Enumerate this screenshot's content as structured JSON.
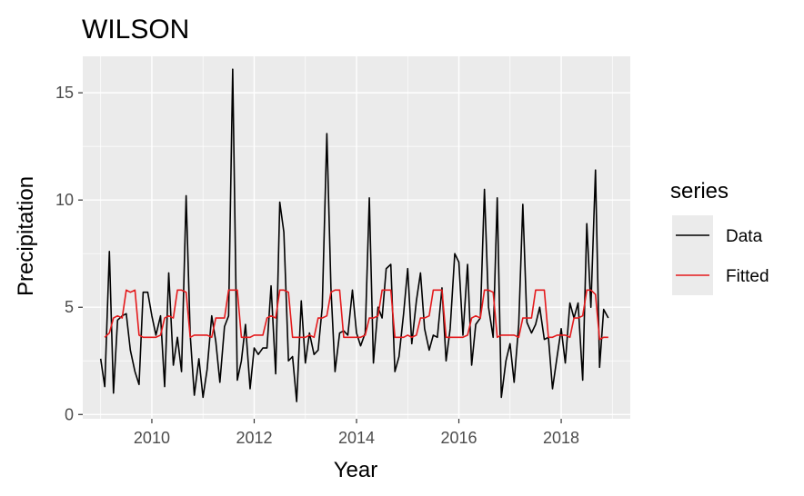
{
  "chart_data": {
    "type": "line",
    "title": "WILSON",
    "xlabel": "Year",
    "ylabel": "Precipitation",
    "xlim": [
      2008.65,
      2019.35
    ],
    "ylim": [
      -0.2,
      16.7
    ],
    "x_ticks": [
      2010,
      2012,
      2014,
      2016,
      2018
    ],
    "x_tick_labels": [
      "2010",
      "2012",
      "2014",
      "2016",
      "2018"
    ],
    "y_ticks": [
      0,
      5,
      10,
      15
    ],
    "y_tick_labels": [
      "0",
      "5",
      "10",
      "15"
    ],
    "grid": true,
    "legend": {
      "title": "series",
      "position": "right"
    },
    "series": [
      {
        "name": "Data",
        "color": "#000000",
        "values": [
          [
            2009.0,
            2.6
          ],
          [
            2009.08,
            1.3
          ],
          [
            2009.17,
            7.6
          ],
          [
            2009.25,
            1.0
          ],
          [
            2009.33,
            4.4
          ],
          [
            2009.42,
            4.6
          ],
          [
            2009.5,
            4.7
          ],
          [
            2009.58,
            3.0
          ],
          [
            2009.67,
            2.0
          ],
          [
            2009.75,
            1.4
          ],
          [
            2009.83,
            5.7
          ],
          [
            2009.92,
            5.7
          ],
          [
            2010.0,
            4.6
          ],
          [
            2010.08,
            3.7
          ],
          [
            2010.17,
            4.6
          ],
          [
            2010.25,
            1.3
          ],
          [
            2010.33,
            6.6
          ],
          [
            2010.42,
            2.3
          ],
          [
            2010.5,
            3.6
          ],
          [
            2010.58,
            2.0
          ],
          [
            2010.67,
            10.2
          ],
          [
            2010.75,
            3.7
          ],
          [
            2010.83,
            0.9
          ],
          [
            2010.92,
            2.6
          ],
          [
            2011.0,
            0.8
          ],
          [
            2011.08,
            2.1
          ],
          [
            2011.17,
            4.6
          ],
          [
            2011.25,
            3.4
          ],
          [
            2011.33,
            1.5
          ],
          [
            2011.42,
            4.1
          ],
          [
            2011.5,
            4.6
          ],
          [
            2011.58,
            16.1
          ],
          [
            2011.67,
            1.6
          ],
          [
            2011.75,
            2.5
          ],
          [
            2011.83,
            4.2
          ],
          [
            2011.92,
            1.2
          ],
          [
            2012.0,
            3.1
          ],
          [
            2012.08,
            2.8
          ],
          [
            2012.17,
            3.1
          ],
          [
            2012.25,
            3.1
          ],
          [
            2012.33,
            6.0
          ],
          [
            2012.42,
            1.9
          ],
          [
            2012.5,
            9.9
          ],
          [
            2012.58,
            8.5
          ],
          [
            2012.67,
            2.5
          ],
          [
            2012.75,
            2.7
          ],
          [
            2012.83,
            0.6
          ],
          [
            2012.92,
            5.3
          ],
          [
            2013.0,
            2.4
          ],
          [
            2013.08,
            3.8
          ],
          [
            2013.17,
            2.8
          ],
          [
            2013.25,
            3.0
          ],
          [
            2013.33,
            5.0
          ],
          [
            2013.42,
            13.1
          ],
          [
            2013.5,
            5.9
          ],
          [
            2013.58,
            2.0
          ],
          [
            2013.67,
            3.8
          ],
          [
            2013.75,
            3.9
          ],
          [
            2013.83,
            3.7
          ],
          [
            2013.92,
            5.8
          ],
          [
            2014.0,
            3.8
          ],
          [
            2014.08,
            3.2
          ],
          [
            2014.17,
            3.8
          ],
          [
            2014.25,
            10.1
          ],
          [
            2014.33,
            2.4
          ],
          [
            2014.42,
            5.0
          ],
          [
            2014.5,
            4.5
          ],
          [
            2014.58,
            6.8
          ],
          [
            2014.67,
            7.0
          ],
          [
            2014.75,
            2.0
          ],
          [
            2014.83,
            2.7
          ],
          [
            2014.92,
            4.7
          ],
          [
            2015.0,
            6.8
          ],
          [
            2015.08,
            3.3
          ],
          [
            2015.17,
            5.3
          ],
          [
            2015.25,
            6.6
          ],
          [
            2015.33,
            4.0
          ],
          [
            2015.42,
            3.0
          ],
          [
            2015.5,
            3.7
          ],
          [
            2015.58,
            3.6
          ],
          [
            2015.67,
            5.9
          ],
          [
            2015.75,
            2.5
          ],
          [
            2015.83,
            4.0
          ],
          [
            2015.92,
            7.5
          ],
          [
            2016.0,
            7.1
          ],
          [
            2016.08,
            3.7
          ],
          [
            2016.17,
            7.0
          ],
          [
            2016.25,
            2.3
          ],
          [
            2016.33,
            4.2
          ],
          [
            2016.42,
            4.5
          ],
          [
            2016.5,
            10.5
          ],
          [
            2016.58,
            5.0
          ],
          [
            2016.67,
            3.6
          ],
          [
            2016.75,
            10.1
          ],
          [
            2016.83,
            0.8
          ],
          [
            2016.92,
            2.5
          ],
          [
            2017.0,
            3.3
          ],
          [
            2017.08,
            1.5
          ],
          [
            2017.17,
            4.2
          ],
          [
            2017.25,
            9.8
          ],
          [
            2017.33,
            4.3
          ],
          [
            2017.42,
            3.8
          ],
          [
            2017.5,
            4.2
          ],
          [
            2017.58,
            5.0
          ],
          [
            2017.67,
            3.5
          ],
          [
            2017.75,
            3.6
          ],
          [
            2017.83,
            1.2
          ],
          [
            2017.92,
            2.7
          ],
          [
            2018.0,
            4.0
          ],
          [
            2018.08,
            2.4
          ],
          [
            2018.17,
            5.2
          ],
          [
            2018.25,
            4.5
          ],
          [
            2018.33,
            5.2
          ],
          [
            2018.42,
            1.6
          ],
          [
            2018.5,
            8.9
          ],
          [
            2018.58,
            5.0
          ],
          [
            2018.67,
            11.4
          ],
          [
            2018.75,
            2.2
          ],
          [
            2018.83,
            4.9
          ],
          [
            2018.92,
            4.5
          ]
        ]
      },
      {
        "name": "Fitted",
        "color": "#e41a1c",
        "values": [
          [
            2009.08,
            3.6
          ],
          [
            2009.17,
            3.8
          ],
          [
            2009.25,
            4.5
          ],
          [
            2009.33,
            4.6
          ],
          [
            2009.42,
            4.5
          ],
          [
            2009.5,
            5.8
          ],
          [
            2009.58,
            5.7
          ],
          [
            2009.67,
            5.8
          ],
          [
            2009.75,
            3.7
          ],
          [
            2009.83,
            3.6
          ],
          [
            2009.92,
            3.6
          ],
          [
            2010.0,
            3.6
          ],
          [
            2010.08,
            3.6
          ],
          [
            2010.17,
            3.7
          ],
          [
            2010.25,
            4.5
          ],
          [
            2010.33,
            4.6
          ],
          [
            2010.42,
            4.5
          ],
          [
            2010.5,
            5.8
          ],
          [
            2010.58,
            5.8
          ],
          [
            2010.67,
            5.7
          ],
          [
            2010.75,
            3.6
          ],
          [
            2010.83,
            3.7
          ],
          [
            2010.92,
            3.7
          ],
          [
            2011.0,
            3.7
          ],
          [
            2011.08,
            3.7
          ],
          [
            2011.17,
            3.6
          ],
          [
            2011.25,
            4.5
          ],
          [
            2011.33,
            4.5
          ],
          [
            2011.42,
            4.5
          ],
          [
            2011.5,
            5.8
          ],
          [
            2011.58,
            5.8
          ],
          [
            2011.67,
            5.8
          ],
          [
            2011.75,
            3.6
          ],
          [
            2011.83,
            3.6
          ],
          [
            2011.92,
            3.6
          ],
          [
            2012.0,
            3.7
          ],
          [
            2012.08,
            3.7
          ],
          [
            2012.17,
            3.7
          ],
          [
            2012.25,
            4.5
          ],
          [
            2012.33,
            4.6
          ],
          [
            2012.42,
            4.5
          ],
          [
            2012.5,
            5.8
          ],
          [
            2012.58,
            5.8
          ],
          [
            2012.67,
            5.7
          ],
          [
            2012.75,
            3.6
          ],
          [
            2012.83,
            3.6
          ],
          [
            2012.92,
            3.6
          ],
          [
            2013.0,
            3.6
          ],
          [
            2013.08,
            3.7
          ],
          [
            2013.17,
            3.6
          ],
          [
            2013.25,
            4.5
          ],
          [
            2013.33,
            4.5
          ],
          [
            2013.42,
            4.6
          ],
          [
            2013.5,
            5.7
          ],
          [
            2013.58,
            5.8
          ],
          [
            2013.67,
            5.8
          ],
          [
            2013.75,
            3.6
          ],
          [
            2013.83,
            3.6
          ],
          [
            2013.92,
            3.6
          ],
          [
            2014.0,
            3.6
          ],
          [
            2014.08,
            3.6
          ],
          [
            2014.17,
            3.7
          ],
          [
            2014.25,
            4.5
          ],
          [
            2014.33,
            4.5
          ],
          [
            2014.42,
            4.6
          ],
          [
            2014.5,
            5.8
          ],
          [
            2014.58,
            5.8
          ],
          [
            2014.67,
            5.8
          ],
          [
            2014.75,
            3.6
          ],
          [
            2014.83,
            3.6
          ],
          [
            2014.92,
            3.6
          ],
          [
            2015.0,
            3.7
          ],
          [
            2015.08,
            3.6
          ],
          [
            2015.17,
            3.7
          ],
          [
            2015.25,
            4.5
          ],
          [
            2015.33,
            4.5
          ],
          [
            2015.42,
            4.6
          ],
          [
            2015.5,
            5.8
          ],
          [
            2015.58,
            5.8
          ],
          [
            2015.67,
            5.8
          ],
          [
            2015.75,
            3.6
          ],
          [
            2015.83,
            3.6
          ],
          [
            2015.92,
            3.6
          ],
          [
            2016.0,
            3.6
          ],
          [
            2016.08,
            3.6
          ],
          [
            2016.17,
            3.7
          ],
          [
            2016.25,
            4.5
          ],
          [
            2016.33,
            4.6
          ],
          [
            2016.42,
            4.5
          ],
          [
            2016.5,
            5.8
          ],
          [
            2016.58,
            5.8
          ],
          [
            2016.67,
            5.7
          ],
          [
            2016.75,
            3.6
          ],
          [
            2016.83,
            3.7
          ],
          [
            2016.92,
            3.7
          ],
          [
            2017.0,
            3.7
          ],
          [
            2017.08,
            3.7
          ],
          [
            2017.17,
            3.6
          ],
          [
            2017.25,
            4.5
          ],
          [
            2017.33,
            4.5
          ],
          [
            2017.42,
            4.5
          ],
          [
            2017.5,
            5.8
          ],
          [
            2017.58,
            5.8
          ],
          [
            2017.67,
            5.8
          ],
          [
            2017.75,
            3.6
          ],
          [
            2017.83,
            3.6
          ],
          [
            2017.92,
            3.7
          ],
          [
            2018.0,
            3.7
          ],
          [
            2018.08,
            3.7
          ],
          [
            2018.17,
            3.6
          ],
          [
            2018.25,
            4.5
          ],
          [
            2018.33,
            4.5
          ],
          [
            2018.42,
            4.6
          ],
          [
            2018.5,
            5.8
          ],
          [
            2018.58,
            5.8
          ],
          [
            2018.67,
            5.6
          ],
          [
            2018.75,
            3.5
          ],
          [
            2018.83,
            3.6
          ],
          [
            2018.92,
            3.6
          ]
        ]
      }
    ]
  }
}
